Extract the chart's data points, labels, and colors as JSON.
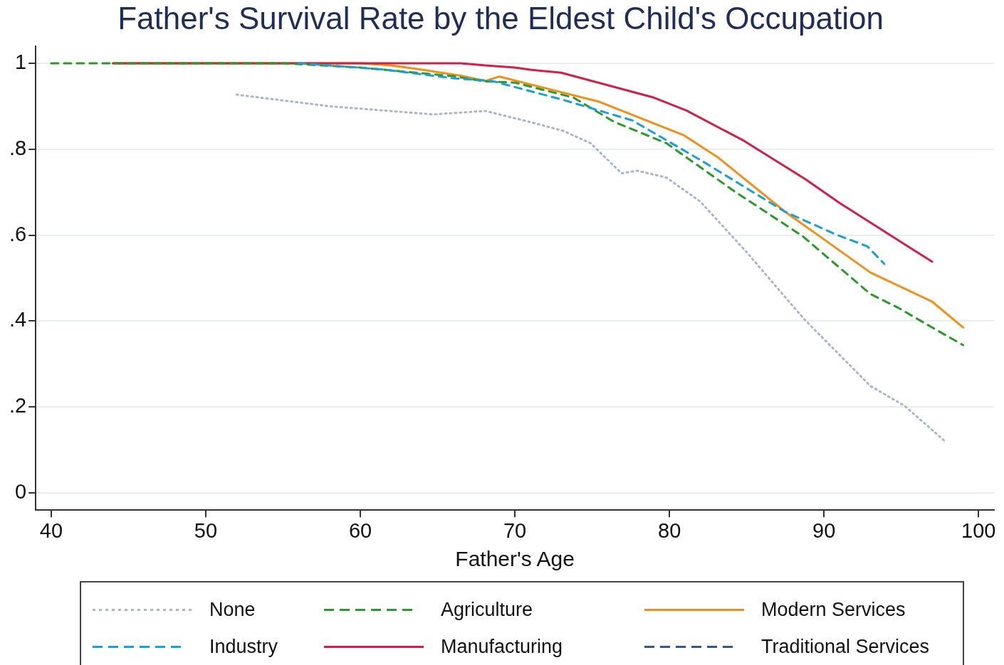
{
  "chart_data": {
    "type": "line",
    "title": "Father's Survival Rate by the Eldest Child's Occupation",
    "xlabel": "Father's Age",
    "xlim": [
      39,
      101
    ],
    "xticks": [
      40,
      50,
      60,
      70,
      80,
      90,
      100
    ],
    "ylim": [
      -0.04,
      1.04
    ],
    "yticks": [
      {
        "value": 0,
        "label": "0"
      },
      {
        "value": 0.2,
        "label": ".2"
      },
      {
        "value": 0.4,
        "label": ".4"
      },
      {
        "value": 0.6,
        "label": ".6"
      },
      {
        "value": 0.8,
        "label": ".8"
      },
      {
        "value": 1,
        "label": "1"
      }
    ],
    "grid": "y",
    "legend": "bottom",
    "marker": "none",
    "series": [
      {
        "name": "None",
        "color": "#a9b6c8",
        "line_style": "dotted",
        "x": [
          52,
          58,
          64.7,
          68.1,
          70.9,
          73.1,
          74.9,
          76.9,
          77.9,
          79.8,
          82,
          85,
          88.7,
          93,
          95.2,
          97.9
        ],
        "values": [
          0.927,
          0.9,
          0.881,
          0.889,
          0.864,
          0.843,
          0.814,
          0.744,
          0.75,
          0.734,
          0.678,
          0.56,
          0.405,
          0.249,
          0.203,
          0.118
        ]
      },
      {
        "name": "Industry",
        "color": "#1a9fd8",
        "line_style": "dashed",
        "x": [
          56,
          61.4,
          66,
          68.5,
          73.1,
          77.6,
          82,
          87.5,
          90.8,
          92.8,
          93.9
        ],
        "values": [
          1,
          0.986,
          0.965,
          0.959,
          0.915,
          0.867,
          0.775,
          0.654,
          0.601,
          0.574,
          0.533
        ]
      },
      {
        "name": "Agriculture",
        "color": "#2a9a2a",
        "line_style": "dashed",
        "x": [
          40,
          55,
          60,
          66,
          68,
          70,
          73.8,
          76.4,
          79.8,
          84.2,
          88.6,
          93,
          94.8,
          97,
          99
        ],
        "values": [
          1,
          1,
          0.99,
          0.97,
          0.958,
          0.955,
          0.92,
          0.864,
          0.814,
          0.702,
          0.598,
          0.463,
          0.431,
          0.385,
          0.344
        ]
      },
      {
        "name": "Manufacturing",
        "color": "#d0204a",
        "line_style": "solid",
        "x": [
          44,
          60,
          66.5,
          68.1,
          70,
          71,
          73,
          79,
          81.1,
          84.8,
          88.8,
          91,
          97
        ],
        "values": [
          1,
          1,
          1,
          0.995,
          0.99,
          0.985,
          0.978,
          0.92,
          0.89,
          0.82,
          0.73,
          0.675,
          0.538
        ]
      },
      {
        "name": "Modern Services",
        "color": "#f0901a",
        "line_style": "solid",
        "x": [
          44,
          60,
          62,
          64,
          66.5,
          68.1,
          69,
          75.4,
          80.9,
          83.1,
          87.5,
          90,
          93,
          97,
          99
        ],
        "values": [
          1,
          1,
          0.995,
          0.985,
          0.971,
          0.959,
          0.969,
          0.911,
          0.833,
          0.782,
          0.654,
          0.59,
          0.513,
          0.445,
          0.385
        ]
      },
      {
        "name": "Traditional Services",
        "color": "#2d5b8a",
        "line_style": "dashed"
      }
    ]
  }
}
